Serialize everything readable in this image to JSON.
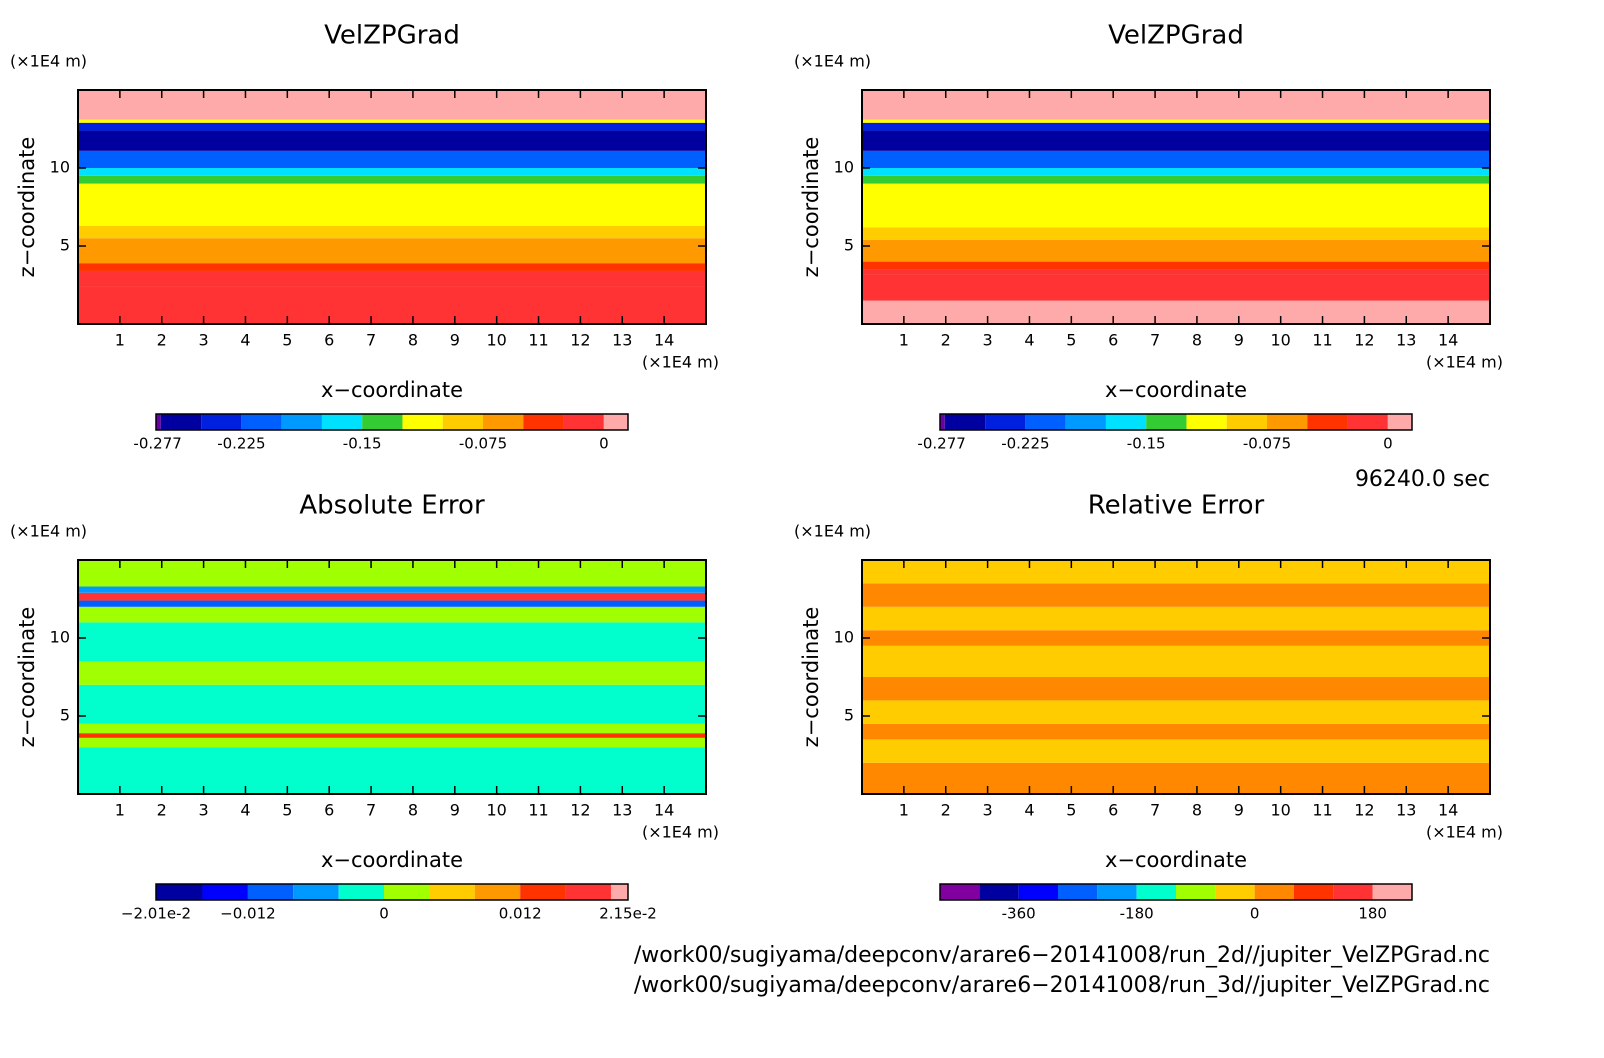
{
  "chart_data": [
    {
      "type": "contour",
      "title": "VelZPGrad",
      "xlabel": "x−coordinate",
      "ylabel": "z−coordinate",
      "x_unit": "(×1E4 m)",
      "y_unit": "(×1E4 m)",
      "xlim": [
        0,
        15
      ],
      "ylim": [
        0,
        15
      ],
      "xticks": [
        1,
        2,
        3,
        4,
        5,
        6,
        7,
        8,
        9,
        10,
        11,
        12,
        13,
        14
      ],
      "yticks": [
        5,
        10
      ],
      "z_bands": [
        0,
        2.4,
        3.4,
        3.9,
        5.5,
        6.3,
        9.0,
        9.5,
        10.0,
        11.1,
        12.4,
        12.9,
        13.1,
        15
      ],
      "band_values": [
        -0.01,
        -0.02,
        -0.035,
        -0.06,
        -0.09,
        -0.11,
        -0.14,
        -0.16,
        -0.21,
        -0.26,
        -0.24,
        -0.11,
        0.005
      ],
      "colorbar": {
        "levels": [
          -0.278,
          -0.275,
          -0.25,
          -0.225,
          -0.2,
          -0.175,
          -0.15,
          -0.125,
          -0.1,
          -0.075,
          -0.05,
          -0.025,
          0,
          0.015
        ],
        "colors": [
          "#6a00a8",
          "#0000a0",
          "#0020e0",
          "#0060ff",
          "#0099ff",
          "#00e0ff",
          "#33cc33",
          "#ffff00",
          "#ffcc00",
          "#ff9900",
          "#ff3300",
          "#ff3333",
          "#ffaaaa"
        ],
        "ticks": [
          -0.277,
          -0.225,
          -0.15,
          -0.075,
          0
        ]
      }
    },
    {
      "type": "contour",
      "title": "VelZPGrad",
      "xlabel": "x−coordinate",
      "ylabel": "z−coordinate",
      "x_unit": "(×1E4 m)",
      "y_unit": "(×1E4 m)",
      "xlim": [
        0,
        15
      ],
      "ylim": [
        0,
        15
      ],
      "xticks": [
        1,
        2,
        3,
        4,
        5,
        6,
        7,
        8,
        9,
        10,
        11,
        12,
        13,
        14
      ],
      "yticks": [
        5,
        10
      ],
      "z_bands": [
        0,
        1.5,
        3.2,
        3.5,
        4.0,
        5.4,
        6.2,
        9.0,
        9.5,
        10.0,
        11.1,
        12.4,
        12.9,
        13.1,
        15
      ],
      "band_values": [
        0.005,
        -0.01,
        -0.02,
        -0.035,
        -0.06,
        -0.09,
        -0.11,
        -0.14,
        -0.16,
        -0.21,
        -0.26,
        -0.24,
        -0.11,
        0.005
      ],
      "colorbar": {
        "levels": [
          -0.278,
          -0.275,
          -0.25,
          -0.225,
          -0.2,
          -0.175,
          -0.15,
          -0.125,
          -0.1,
          -0.075,
          -0.05,
          -0.025,
          0,
          0.015
        ],
        "colors": [
          "#6a00a8",
          "#0000a0",
          "#0020e0",
          "#0060ff",
          "#0099ff",
          "#00e0ff",
          "#33cc33",
          "#ffff00",
          "#ffcc00",
          "#ff9900",
          "#ff3300",
          "#ff3333",
          "#ffaaaa"
        ],
        "ticks": [
          -0.277,
          -0.225,
          -0.15,
          -0.075,
          0
        ]
      }
    },
    {
      "type": "contour",
      "title": "Absolute Error",
      "xlabel": "x−coordinate",
      "ylabel": "z−coordinate",
      "x_unit": "(×1E4 m)",
      "y_unit": "(×1E4 m)",
      "xlim": [
        0,
        15
      ],
      "ylim": [
        0,
        15
      ],
      "xticks": [
        1,
        2,
        3,
        4,
        5,
        6,
        7,
        8,
        9,
        10,
        11,
        12,
        13,
        14
      ],
      "yticks": [
        5,
        10
      ],
      "z_bands": [
        0,
        3.0,
        3.6,
        3.9,
        4.5,
        7.0,
        8.5,
        11.0,
        12.0,
        12.4,
        12.9,
        13.3,
        15
      ],
      "band_values": [
        -0.002,
        0.002,
        0.014,
        0.002,
        -0.002,
        0.002,
        -0.002,
        0.002,
        -0.01,
        0.018,
        -0.006,
        0.002
      ],
      "colorbar": {
        "levels": [
          -0.0201,
          -0.016,
          -0.012,
          -0.008,
          -0.004,
          0,
          0.004,
          0.008,
          0.012,
          0.016,
          0.02,
          0.0215
        ],
        "colors": [
          "#0000a0",
          "#0000ff",
          "#0060ff",
          "#0099ff",
          "#00ffcc",
          "#a0ff00",
          "#ffcc00",
          "#ff9900",
          "#ff3300",
          "#ff3333",
          "#ffaaaa"
        ],
        "ticks": [
          {
            "value": -0.0201,
            "label": "−2.01e-2"
          },
          {
            "value": -0.012,
            "label": "−0.012"
          },
          0,
          0.012,
          {
            "value": 0.0215,
            "label": "2.15e-2"
          }
        ]
      }
    },
    {
      "type": "contour",
      "title": "Relative Error",
      "xlabel": "x−coordinate",
      "ylabel": "z−coordinate",
      "x_unit": "(×1E4 m)",
      "y_unit": "(×1E4 m)",
      "xlim": [
        0,
        15
      ],
      "ylim": [
        0,
        15
      ],
      "xticks": [
        1,
        2,
        3,
        4,
        5,
        6,
        7,
        8,
        9,
        10,
        11,
        12,
        13,
        14
      ],
      "yticks": [
        5,
        10
      ],
      "z_bands": [
        0,
        2.0,
        3.5,
        4.5,
        6.0,
        7.5,
        9.5,
        10.5,
        12.0,
        13.5,
        15
      ],
      "band_values": [
        30,
        -30,
        30,
        -30,
        30,
        -30,
        30,
        -30,
        30,
        -30
      ],
      "colorbar": {
        "levels": [
          -480,
          -420,
          -360,
          -300,
          -240,
          -180,
          -120,
          -60,
          0,
          60,
          120,
          180,
          240
        ],
        "colors": [
          "#8000a0",
          "#0000a0",
          "#0000ff",
          "#0060ff",
          "#0099ff",
          "#00ffcc",
          "#a0ff00",
          "#ffcc00",
          "#ff8800",
          "#ff3300",
          "#ff3333",
          "#ffaaaa"
        ],
        "ticks": [
          -360,
          -180,
          0,
          180
        ]
      }
    }
  ],
  "time_label": "96240.0 sec",
  "files": [
    "/work00/sugiyama/deepconv/arare6−20141008/run_2d//jupiter_VelZPGrad.nc",
    "/work00/sugiyama/deepconv/arare6−20141008/run_3d//jupiter_VelZPGrad.nc"
  ]
}
